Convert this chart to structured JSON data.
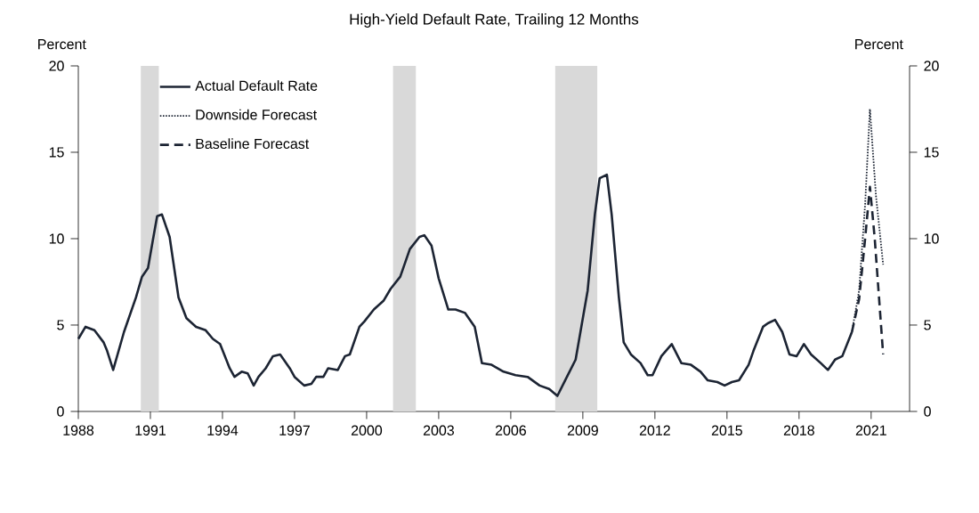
{
  "chart_data": {
    "type": "line",
    "title": "High-Yield Default Rate, Trailing 12 Months",
    "ylabel": "Percent",
    "y2label": "Percent",
    "xlim": [
      1988,
      2022.6
    ],
    "xticks": [
      1988,
      1991,
      1994,
      1997,
      2000,
      2003,
      2006,
      2009,
      2012,
      2015,
      2018,
      2021
    ],
    "ylim": [
      0,
      20
    ],
    "yticks": [
      0,
      5,
      10,
      15,
      20
    ],
    "y2lim": [
      0,
      20
    ],
    "y2ticks": [
      0,
      5,
      10,
      15,
      20
    ],
    "legend": "top left",
    "bands": [
      {
        "axis": "x",
        "from": 1990.6,
        "to": 1991.35,
        "color": "#d9d9d9"
      },
      {
        "axis": "x",
        "from": 2001.1,
        "to": 2002.05,
        "color": "#d9d9d9"
      },
      {
        "axis": "x",
        "from": 2007.85,
        "to": 2009.6,
        "color": "#d9d9d9"
      }
    ],
    "series": [
      {
        "name": "Actual Default Rate",
        "color": "#1c2433",
        "line_style": "solid",
        "x": [
          1988.0,
          1988.3,
          1988.67,
          1989.05,
          1989.2,
          1989.45,
          1989.9,
          1990.4,
          1990.65,
          1990.9,
          1991.1,
          1991.28,
          1991.48,
          1991.8,
          1992.17,
          1992.5,
          1992.9,
          1993.3,
          1993.6,
          1993.9,
          1994.3,
          1994.5,
          1994.8,
          1995.05,
          1995.3,
          1995.5,
          1995.8,
          1996.1,
          1996.4,
          1996.8,
          1997.0,
          1997.4,
          1997.7,
          1997.9,
          1998.2,
          1998.4,
          1998.8,
          1999.1,
          1999.3,
          1999.7,
          1999.9,
          2000.3,
          2000.7,
          2001.0,
          2001.4,
          2001.8,
          2002.2,
          2002.4,
          2002.7,
          2003.0,
          2003.4,
          2003.7,
          2004.1,
          2004.5,
          2004.8,
          2005.2,
          2005.7,
          2006.2,
          2006.7,
          2007.2,
          2007.6,
          2007.94,
          2008.3,
          2008.7,
          2008.9,
          2009.2,
          2009.5,
          2009.7,
          2010.0,
          2010.2,
          2010.5,
          2010.7,
          2011.0,
          2011.4,
          2011.7,
          2011.9,
          2012.27,
          2012.7,
          2013.1,
          2013.5,
          2013.9,
          2014.2,
          2014.6,
          2014.9,
          2015.2,
          2015.5,
          2015.9,
          2016.1,
          2016.5,
          2016.7,
          2017.0,
          2017.3,
          2017.6,
          2017.9,
          2018.2,
          2018.5,
          2018.9,
          2019.2,
          2019.5,
          2019.8,
          2020.2
        ],
        "values": [
          4.2,
          4.9,
          4.7,
          4.0,
          3.5,
          2.4,
          4.6,
          6.6,
          7.8,
          8.3,
          9.9,
          11.3,
          11.4,
          10.1,
          6.6,
          5.4,
          4.9,
          4.7,
          4.2,
          3.9,
          2.5,
          2.0,
          2.3,
          2.2,
          1.5,
          2.0,
          2.5,
          3.2,
          3.3,
          2.5,
          2.0,
          1.5,
          1.6,
          2.0,
          2.0,
          2.5,
          2.4,
          3.2,
          3.3,
          4.9,
          5.2,
          5.9,
          6.4,
          7.1,
          7.8,
          9.4,
          10.1,
          10.2,
          9.6,
          7.7,
          5.9,
          5.9,
          5.7,
          4.9,
          2.8,
          2.7,
          2.3,
          2.1,
          2.0,
          1.5,
          1.3,
          0.9,
          1.9,
          3.0,
          4.6,
          7.0,
          11.4,
          13.5,
          13.7,
          11.4,
          6.6,
          4.0,
          3.3,
          2.8,
          2.1,
          2.1,
          3.2,
          3.9,
          2.8,
          2.7,
          2.3,
          1.8,
          1.7,
          1.5,
          1.7,
          1.8,
          2.7,
          3.5,
          4.9,
          5.1,
          5.3,
          4.6,
          3.3,
          3.2,
          3.9,
          3.3,
          2.8,
          2.4,
          3.0,
          3.2,
          4.6
        ]
      },
      {
        "name": "Downside Forecast",
        "color": "#1c2433",
        "line_style": "dotted",
        "x": [
          2020.2,
          2020.5,
          2020.75,
          2020.95,
          2021.2,
          2021.5
        ],
        "values": [
          4.6,
          7.0,
          12.0,
          17.5,
          12.5,
          8.5
        ]
      },
      {
        "name": "Baseline Forecast",
        "color": "#1c2433",
        "line_style": "dashed",
        "x": [
          2020.2,
          2020.5,
          2020.75,
          2020.95,
          2021.15,
          2021.5
        ],
        "values": [
          4.6,
          6.5,
          10.0,
          13.0,
          10.0,
          3.3
        ]
      }
    ]
  }
}
